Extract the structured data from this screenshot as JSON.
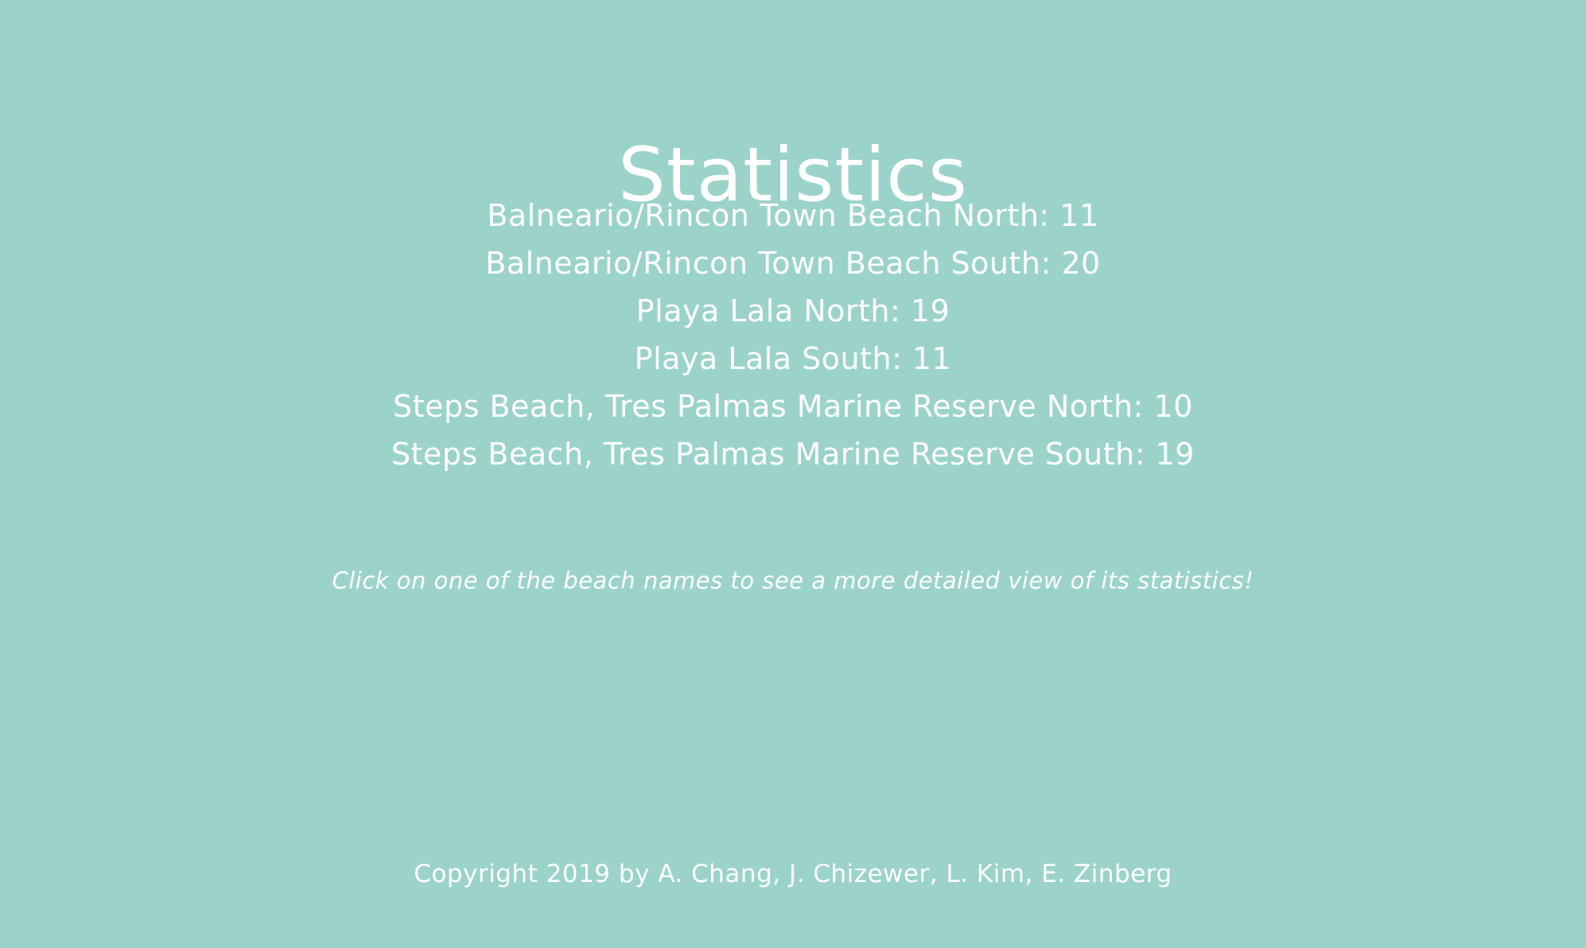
{
  "page": {
    "title": "Statistics",
    "background_color": "#9bd3ca",
    "text_color": "#ffffff"
  },
  "beaches": [
    {
      "name": "Balneario/Rincon Town Beach North",
      "separator": ": ",
      "count": "11"
    },
    {
      "name": "Balneario/Rincon Town Beach South",
      "separator": ": ",
      "count": "20"
    },
    {
      "name": "Playa Lala North",
      "separator": ": ",
      "count": "19"
    },
    {
      "name": "Playa Lala South",
      "separator": ": ",
      "count": "11"
    },
    {
      "name": "Steps Beach, Tres Palmas Marine Reserve North",
      "separator": ": ",
      "count": "10"
    },
    {
      "name": "Steps Beach, Tres Palmas Marine Reserve South",
      "separator": ": ",
      "count": "19"
    }
  ],
  "hint": "Click on one of the beach names to see a more detailed view of its statistics!",
  "footer": {
    "copyright": "Copyright 2019 by A. Chang, J. Chizewer, L. Kim, E. Zinberg"
  }
}
